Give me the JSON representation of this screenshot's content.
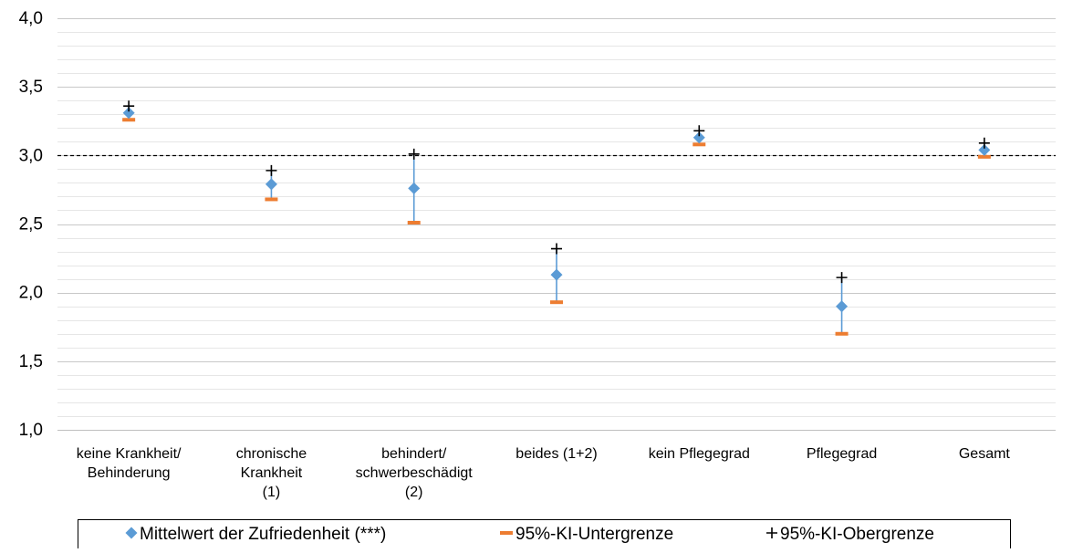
{
  "chart_data": {
    "type": "scatter",
    "categories": [
      [
        "keine Krankheit/",
        "Behinderung"
      ],
      [
        "chronische",
        "Krankheit",
        "(1)"
      ],
      [
        "behindert/",
        "schwerbeschädigt",
        "(2)"
      ],
      [
        "beides (1+2)"
      ],
      [
        "kein Pflegegrad"
      ],
      [
        "Pflegegrad"
      ],
      [
        "Gesamt"
      ]
    ],
    "series": [
      {
        "name": "Mittelwert der Zufriedenheit (***)",
        "marker": "diamond",
        "color": "#5b9bd5",
        "values": [
          3.31,
          2.79,
          2.76,
          2.13,
          3.13,
          1.9,
          3.04
        ]
      },
      {
        "name": "95%-KI-Untergrenze",
        "marker": "dash",
        "color": "#ed7d31",
        "values": [
          3.26,
          2.68,
          2.51,
          1.93,
          3.08,
          1.7,
          2.99
        ]
      },
      {
        "name": "95%-KI-Obergrenze",
        "marker": "plus",
        "color": "#000000",
        "values": [
          3.36,
          2.89,
          3.01,
          2.32,
          3.18,
          2.11,
          3.09
        ]
      }
    ],
    "y_ticks": [
      "1,0",
      "1,5",
      "2,0",
      "2,5",
      "3,0",
      "3,5",
      "4,0"
    ],
    "ylim": [
      1.0,
      4.0
    ],
    "reference_line": 3.0,
    "grid": true,
    "legend_position": "bottom"
  }
}
